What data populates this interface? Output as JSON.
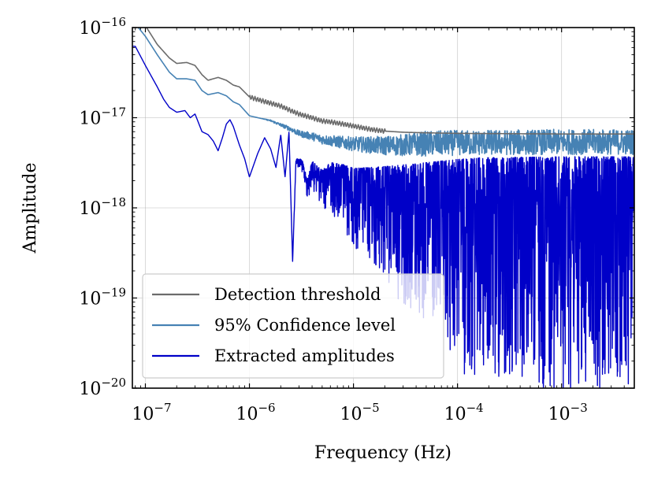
{
  "chart_data": {
    "type": "line",
    "title": "",
    "xlabel": "Frequency (Hz)",
    "ylabel": "Amplitude",
    "xscale": "log",
    "yscale": "log",
    "xlim": [
      7.5e-08,
      0.005
    ],
    "ylim": [
      1e-20,
      1e-16
    ],
    "grid": true,
    "legend_position": "lower-left",
    "x_ticks": [
      {
        "value": 1e-07,
        "base": "10",
        "exp": "−7"
      },
      {
        "value": 1e-06,
        "base": "10",
        "exp": "−6"
      },
      {
        "value": 1e-05,
        "base": "10",
        "exp": "−5"
      },
      {
        "value": 0.0001,
        "base": "10",
        "exp": "−4"
      },
      {
        "value": 0.001,
        "base": "10",
        "exp": "−3"
      }
    ],
    "y_ticks": [
      {
        "value": 1e-16,
        "base": "10",
        "exp": "−16"
      },
      {
        "value": 1e-17,
        "base": "10",
        "exp": "−17"
      },
      {
        "value": 1e-18,
        "base": "10",
        "exp": "−18"
      },
      {
        "value": 1e-19,
        "base": "10",
        "exp": "−19"
      },
      {
        "value": 1e-20,
        "base": "10",
        "exp": "−20"
      }
    ],
    "series": [
      {
        "name": "Detection threshold",
        "color": "#6b6b6b",
        "style": "smooth",
        "points": [
          [
            8e-08,
            1.4e-16
          ],
          [
            1e-07,
            1.05e-16
          ],
          [
            1.3e-07,
            6.5e-17
          ],
          [
            1.7e-07,
            4.6e-17
          ],
          [
            2e-07,
            4e-17
          ],
          [
            2.5e-07,
            4.1e-17
          ],
          [
            3e-07,
            3.8e-17
          ],
          [
            3.5e-07,
            3e-17
          ],
          [
            4e-07,
            2.6e-17
          ],
          [
            5e-07,
            2.8e-17
          ],
          [
            6e-07,
            2.6e-17
          ],
          [
            7e-07,
            2.3e-17
          ],
          [
            8e-07,
            2.2e-17
          ],
          [
            1e-06,
            1.7e-17
          ],
          [
            1.3e-06,
            1.55e-17
          ],
          [
            1.6e-06,
            1.45e-17
          ],
          [
            2e-06,
            1.35e-17
          ],
          [
            2.5e-06,
            1.2e-17
          ],
          [
            3e-06,
            1.1e-17
          ],
          [
            4e-06,
            1e-17
          ],
          [
            5e-06,
            9.2e-18
          ],
          [
            6e-06,
            9e-18
          ],
          [
            8e-06,
            8.5e-18
          ],
          [
            1e-05,
            8.1e-18
          ],
          [
            1.5e-05,
            7.4e-18
          ],
          [
            2e-05,
            7.1e-18
          ],
          [
            3e-05,
            6.9e-18
          ],
          [
            5e-05,
            6.8e-18
          ],
          [
            0.0001,
            6.7e-18
          ],
          [
            0.001,
            6.6e-18
          ],
          [
            0.005,
            6.6e-18
          ]
        ]
      },
      {
        "name": "95% Confidence level",
        "color": "#4682b4",
        "style": "noisy-upper",
        "points": [
          [
            8e-08,
            1.1e-16
          ],
          [
            1e-07,
            8e-17
          ],
          [
            1.3e-07,
            5e-17
          ],
          [
            1.7e-07,
            3.2e-17
          ],
          [
            2e-07,
            2.7e-17
          ],
          [
            2.5e-07,
            2.7e-17
          ],
          [
            3e-07,
            2.6e-17
          ],
          [
            3.5e-07,
            2e-17
          ],
          [
            4e-07,
            1.8e-17
          ],
          [
            5e-07,
            1.9e-17
          ],
          [
            6e-07,
            1.75e-17
          ],
          [
            7e-07,
            1.5e-17
          ],
          [
            8e-07,
            1.4e-17
          ],
          [
            1e-06,
            1.05e-17
          ],
          [
            1.3e-06,
            9.8e-18
          ],
          [
            1.6e-06,
            9.2e-18
          ],
          [
            2e-06,
            8.2e-18
          ],
          [
            2.5e-06,
            7.3e-18
          ],
          [
            3e-06,
            6.5e-18
          ],
          [
            4e-06,
            6e-18
          ],
          [
            5e-06,
            5.5e-18
          ],
          [
            6e-06,
            5.3e-18
          ],
          [
            8e-06,
            5e-18
          ],
          [
            1e-05,
            4.8e-18
          ],
          [
            1.5e-05,
            4.6e-18
          ],
          [
            2e-05,
            4.5e-18
          ],
          [
            3e-05,
            4.5e-18
          ],
          [
            5e-05,
            4.6e-18
          ],
          [
            0.0001,
            4.7e-18
          ],
          [
            0.001,
            4.8e-18
          ],
          [
            0.005,
            4.8e-18
          ]
        ]
      },
      {
        "name": "Extracted amplitudes",
        "color": "#0000c8",
        "style": "noisy-deep",
        "points": [
          [
            8e-08,
            6.2e-17
          ],
          [
            1e-07,
            3.8e-17
          ],
          [
            1.3e-07,
            2.2e-17
          ],
          [
            1.5e-07,
            1.6e-17
          ],
          [
            1.7e-07,
            1.3e-17
          ],
          [
            2e-07,
            1.15e-17
          ],
          [
            2.4e-07,
            1.2e-17
          ],
          [
            2.7e-07,
            1e-17
          ],
          [
            3e-07,
            1.1e-17
          ],
          [
            3.5e-07,
            7e-18
          ],
          [
            4e-07,
            6.5e-18
          ],
          [
            4.5e-07,
            5.5e-18
          ],
          [
            5e-07,
            4.3e-18
          ],
          [
            5.5e-07,
            6e-18
          ],
          [
            6e-07,
            8.5e-18
          ],
          [
            6.5e-07,
            9.5e-18
          ],
          [
            7e-07,
            8e-18
          ],
          [
            8e-07,
            5e-18
          ],
          [
            9e-07,
            3.5e-18
          ],
          [
            1e-06,
            2.2e-18
          ],
          [
            1.2e-06,
            4e-18
          ],
          [
            1.4e-06,
            6e-18
          ],
          [
            1.6e-06,
            4.5e-18
          ],
          [
            1.8e-06,
            2.8e-18
          ],
          [
            2e-06,
            6.5e-18
          ],
          [
            2.2e-06,
            2.2e-18
          ],
          [
            2.4e-06,
            7e-18
          ],
          [
            2.6e-06,
            2.6e-19
          ],
          [
            2.8e-06,
            3.5e-18
          ],
          [
            3.2e-06,
            3.4e-18
          ],
          [
            3.6e-06,
            2e-18
          ],
          [
            4e-06,
            3.2e-18
          ],
          [
            5e-06,
            2.5e-18
          ],
          [
            6e-06,
            3e-18
          ],
          [
            8e-06,
            2.8e-18
          ],
          [
            1e-05,
            2.5e-18
          ],
          [
            2e-05,
            2.5e-18
          ],
          [
            5e-05,
            2.6e-18
          ],
          [
            0.0001,
            2.7e-18
          ],
          [
            0.001,
            2.8e-18
          ],
          [
            0.005,
            2.8e-18
          ]
        ]
      }
    ]
  }
}
